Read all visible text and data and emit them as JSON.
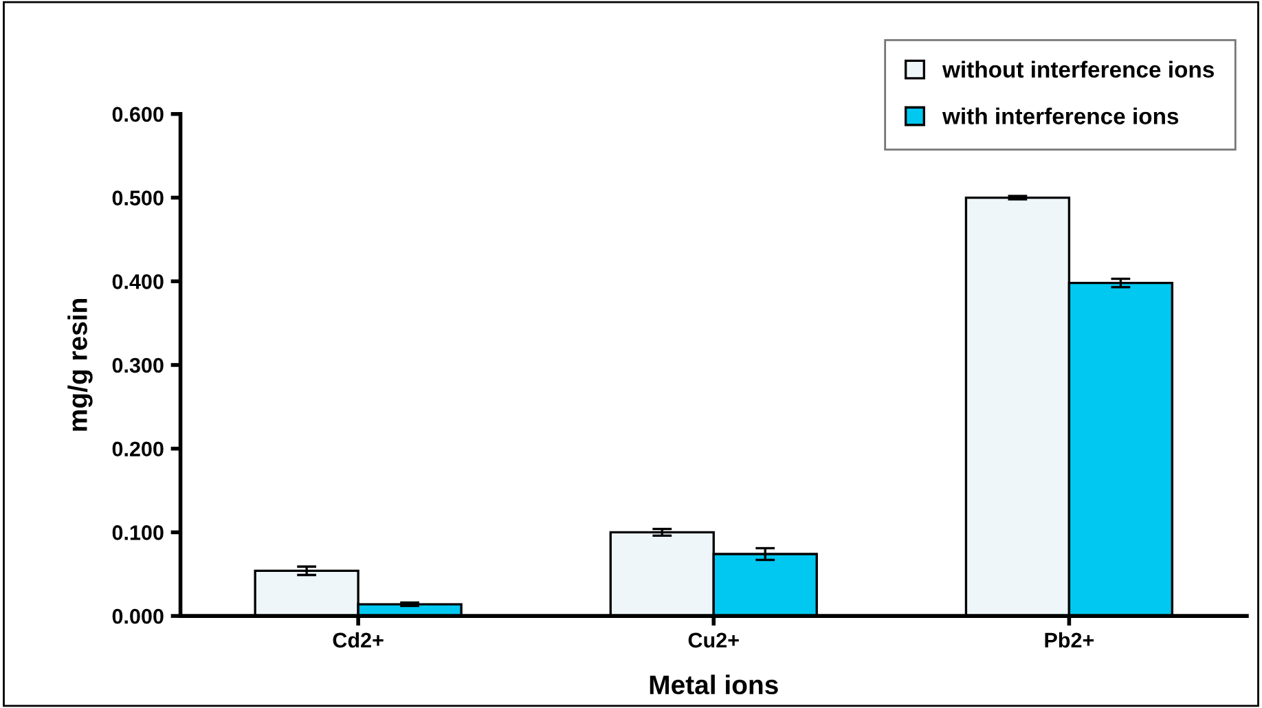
{
  "chart_data": {
    "type": "bar",
    "xlabel": "Metal ions",
    "ylabel": "mg/g resin",
    "categories": [
      "Cd2+",
      "Cu2+",
      "Pb2+"
    ],
    "series": [
      {
        "name": "without interference ions",
        "color": "#eef6fa",
        "values": [
          0.054,
          0.1,
          0.5
        ],
        "errors": [
          0.005,
          0.004,
          0.002
        ]
      },
      {
        "name": "with interference ions",
        "color": "#00c8f0",
        "values": [
          0.014,
          0.074,
          0.398
        ],
        "errors": [
          0.002,
          0.007,
          0.005
        ]
      }
    ],
    "ylim": [
      0,
      0.6
    ],
    "yticks": [
      {
        "value": 0,
        "label": "0.000"
      },
      {
        "value": 0.1,
        "label": "0.100"
      },
      {
        "value": 0.2,
        "label": "0.200"
      },
      {
        "value": 0.3,
        "label": "0.300"
      },
      {
        "value": 0.4,
        "label": "0.400"
      },
      {
        "value": 0.5,
        "label": "0.500"
      },
      {
        "value": 0.6,
        "label": "0.600"
      }
    ],
    "grid": false,
    "legend": "top right"
  }
}
